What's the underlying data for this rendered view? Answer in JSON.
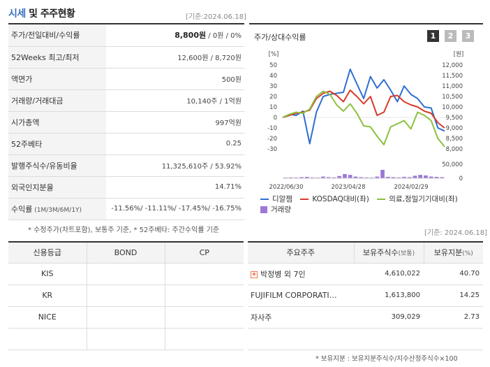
{
  "header": {
    "title_main": "시세",
    "title_rest": " 및 주주현황",
    "date": "[기준:2024.06.18]"
  },
  "price_table": [
    {
      "label": "주가/전일대비/수익률",
      "value_bold": "8,800원",
      "value_rest": " / 0원 / 0%"
    },
    {
      "label": "52Weeks 최고/최저",
      "value": "12,600원 / 8,720원"
    },
    {
      "label": "액면가",
      "value": "500원"
    },
    {
      "label": "거래량/거래대금",
      "value": "10,140주 / 1억원"
    },
    {
      "label": "시가총액",
      "value": "997억원"
    },
    {
      "label": "52주베타",
      "value": "0.25"
    },
    {
      "label": "발행주식수/유동비율",
      "value": "11,325,610주 / 53.92%"
    },
    {
      "label": "외국인지분율",
      "value": "14.71%"
    },
    {
      "label_main": "수익률",
      "label_sub": " (1M/3M/6M/1Y)",
      "value": "-11.56%/ -11.11%/ -17.45%/ -16.75%"
    }
  ],
  "note1": "* 수정주가(차트포함), 보통주 기준, * 52주베타: 주간수익률 기준",
  "chart": {
    "title": "주가/상대수익률",
    "tabs": [
      "1",
      "2",
      "3"
    ],
    "y_left_unit": "[%]",
    "y_right_unit": "[원]",
    "y_left_ticks": [
      "50",
      "40",
      "30",
      "20",
      "10",
      "0",
      "-10",
      "-20",
      "-30"
    ],
    "y_right_ticks": [
      "12,000",
      "11,500",
      "11,000",
      "10,500",
      "10,000",
      "9,500",
      "9,000",
      "8,500",
      "8,000"
    ],
    "vol_ticks": [
      "50,000",
      "0"
    ],
    "x_ticks": [
      "2022/06/30",
      "2023/04/28",
      "2024/02/29"
    ]
  },
  "chart_data": {
    "type": "line",
    "title": "주가/상대수익률",
    "ylabel_left": "[%]",
    "ylabel_right": "[원]",
    "ylim_left": [
      -30,
      50
    ],
    "ylim_right": [
      8000,
      12000
    ],
    "volume_ylim": [
      0,
      50000
    ],
    "x_ticks": [
      "2022/06/30",
      "2023/04/28",
      "2024/02/29"
    ],
    "series": [
      {
        "name": "디알젬",
        "color": "#2f6fd0",
        "axis": "left",
        "values": [
          0,
          3,
          2,
          6,
          -25,
          5,
          20,
          22,
          23,
          24,
          46,
          32,
          18,
          39,
          28,
          36,
          26,
          15,
          30,
          22,
          18,
          10,
          9,
          -10,
          -13
        ]
      },
      {
        "name": "KOSDAQ대비(좌)",
        "color": "#d93a2a",
        "axis": "left",
        "values": [
          0,
          2,
          4,
          5,
          7,
          18,
          23,
          25,
          21,
          15,
          26,
          20,
          13,
          20,
          2,
          5,
          20,
          21,
          15,
          12,
          10,
          6,
          4,
          -5,
          -10
        ]
      },
      {
        "name": "의료,정밀기기대비(좌)",
        "color": "#8cc13f",
        "axis": "left",
        "values": [
          0,
          3,
          5,
          4,
          8,
          20,
          25,
          22,
          12,
          6,
          13,
          4,
          -8,
          -9,
          -18,
          -26,
          -9,
          -6,
          -3,
          -11,
          5,
          2,
          -3,
          -20,
          -28
        ]
      },
      {
        "name": "거래량",
        "color": "#9b78d6",
        "axis": "volume",
        "values": [
          2000,
          3000,
          1500,
          4000,
          5000,
          3000,
          2500,
          6000,
          4000,
          3000,
          8000,
          15000,
          12000,
          6000,
          4000,
          3000,
          2500,
          6000,
          30000,
          5000,
          4000,
          3000,
          5000,
          4000,
          9000,
          12000,
          10000,
          6000,
          5000,
          4000
        ]
      }
    ]
  },
  "legend": [
    {
      "label": "디알젬",
      "kind": "line",
      "color": "#2f6fd0"
    },
    {
      "label": "KOSDAQ대비(좌)",
      "kind": "line",
      "color": "#d93a2a"
    },
    {
      "label": "의료,정밀기기대비(좌)",
      "kind": "line",
      "color": "#8cc13f"
    },
    {
      "label": "거래량",
      "kind": "box",
      "color": "#9b78d6"
    }
  ],
  "date_mid": "[기준: 2024.06.18]",
  "credit": {
    "headers": [
      "신용등급",
      "BOND",
      "CP"
    ],
    "rows": [
      [
        "KIS",
        "",
        ""
      ],
      [
        "KR",
        "",
        ""
      ],
      [
        "NICE",
        "",
        ""
      ],
      [
        "",
        "",
        ""
      ]
    ]
  },
  "holders": {
    "headers": [
      "주요주주",
      "보유주식수",
      "(보통)",
      "보유지분",
      "(%)"
    ],
    "rows": [
      {
        "name": "박정병 외 7인",
        "shares": "4,610,022",
        "pct": "40.70",
        "expandable": true
      },
      {
        "name": "FUJIFILM CORPORATI…",
        "shares": "1,613,800",
        "pct": "14.25",
        "expandable": false
      },
      {
        "name": "자사주",
        "shares": "309,029",
        "pct": "2.73",
        "expandable": false
      },
      {
        "name": "",
        "shares": "",
        "pct": "",
        "expandable": false
      }
    ]
  },
  "note2": "* 보유지분 : 보유지분주식수/지수산정주식수×100"
}
